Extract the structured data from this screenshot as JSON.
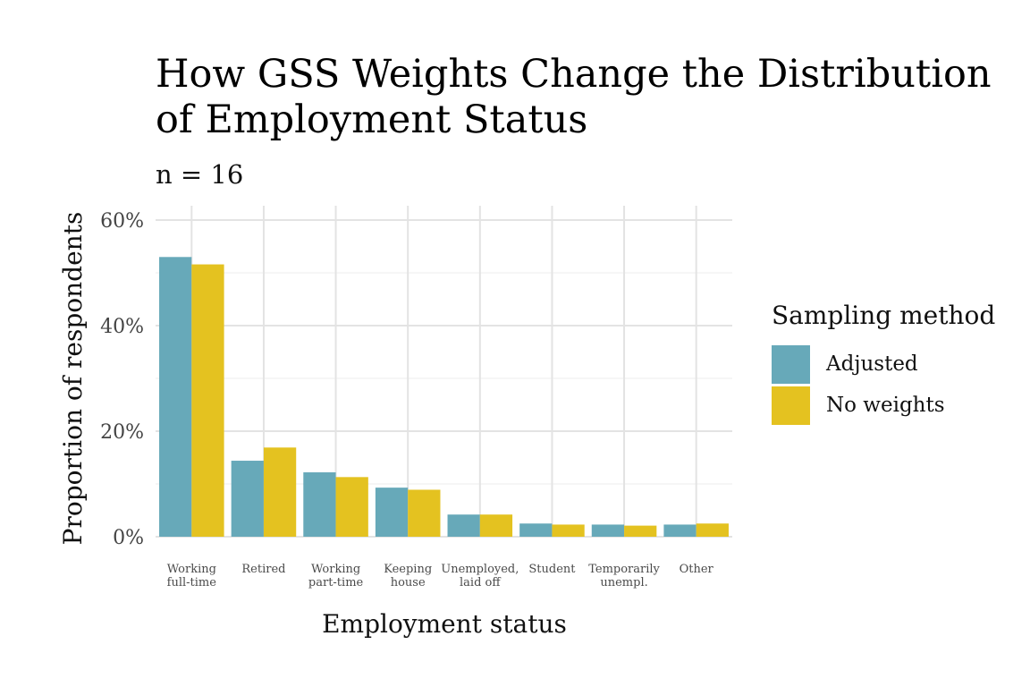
{
  "chart_data": {
    "type": "bar",
    "title": "How GSS Weights Change the Distribution of Employment Status",
    "subtitle": "n = 16",
    "xlabel": "Employment status",
    "ylabel": "Proportion of respondents",
    "categories": [
      [
        "Working",
        "full-time"
      ],
      [
        "Retired"
      ],
      [
        "Working",
        "part-time"
      ],
      [
        "Keeping",
        "house"
      ],
      [
        "Unemployed,",
        "laid off"
      ],
      [
        "Student"
      ],
      [
        "Temporarily",
        "unempl."
      ],
      [
        "Other"
      ]
    ],
    "series": [
      {
        "name": "Adjusted",
        "color": "#67a9b9",
        "values": [
          0.53,
          0.144,
          0.122,
          0.093,
          0.042,
          0.025,
          0.023,
          0.023
        ]
      },
      {
        "name": "No weights",
        "color": "#e4c220",
        "values": [
          0.516,
          0.169,
          0.113,
          0.089,
          0.042,
          0.023,
          0.021,
          0.025
        ]
      }
    ],
    "ylim": [
      0,
      0.6
    ],
    "yticks": [
      0,
      0.2,
      0.4,
      0.6
    ],
    "ytick_labels": [
      "0%",
      "20%",
      "40%",
      "60%"
    ],
    "grid": true,
    "legend": {
      "title": "Sampling method",
      "placement": "right"
    }
  }
}
